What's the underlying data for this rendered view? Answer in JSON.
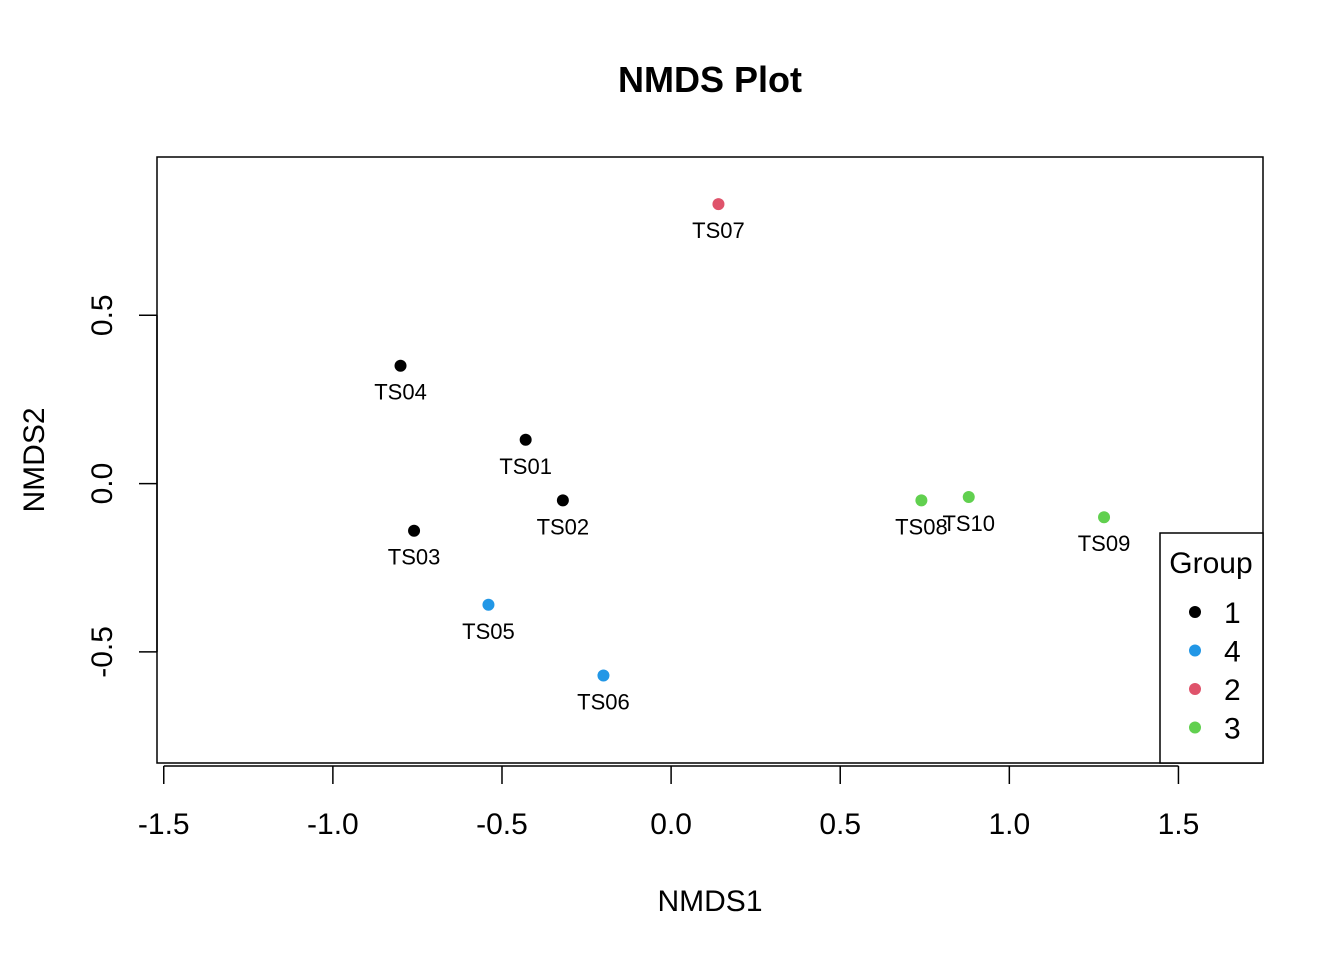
{
  "chart_data": {
    "type": "scatter",
    "title": "NMDS Plot",
    "xlabel": "NMDS1",
    "ylabel": "NMDS2",
    "xlim": [
      -1.52,
      1.75
    ],
    "ylim": [
      -0.83,
      0.97
    ],
    "xticks": [
      "-1.5",
      "-1.0",
      "-0.5",
      "0.0",
      "0.5",
      "1.0",
      "1.5"
    ],
    "yticks": [
      "-0.5",
      "0.0",
      "0.5"
    ],
    "grid": false,
    "legend": {
      "title": "Group",
      "position": "bottom-right",
      "entries": [
        {
          "label": "1",
          "color": "#000000"
        },
        {
          "label": "4",
          "color": "#2297E6"
        },
        {
          "label": "2",
          "color": "#DF536B"
        },
        {
          "label": "3",
          "color": "#61D04F"
        }
      ]
    },
    "points": [
      {
        "label": "TS01",
        "x": -0.43,
        "y": 0.13,
        "group": "1"
      },
      {
        "label": "TS02",
        "x": -0.32,
        "y": -0.05,
        "group": "1"
      },
      {
        "label": "TS03",
        "x": -0.76,
        "y": -0.14,
        "group": "1"
      },
      {
        "label": "TS04",
        "x": -0.8,
        "y": 0.35,
        "group": "1"
      },
      {
        "label": "TS05",
        "x": -0.54,
        "y": -0.36,
        "group": "4"
      },
      {
        "label": "TS06",
        "x": -0.2,
        "y": -0.57,
        "group": "4"
      },
      {
        "label": "TS07",
        "x": 0.14,
        "y": 0.83,
        "group": "2"
      },
      {
        "label": "TS08",
        "x": 0.74,
        "y": -0.05,
        "group": "3"
      },
      {
        "label": "TS09",
        "x": 1.28,
        "y": -0.1,
        "group": "3"
      },
      {
        "label": "TS10",
        "x": 0.88,
        "y": -0.04,
        "group": "3"
      }
    ]
  }
}
